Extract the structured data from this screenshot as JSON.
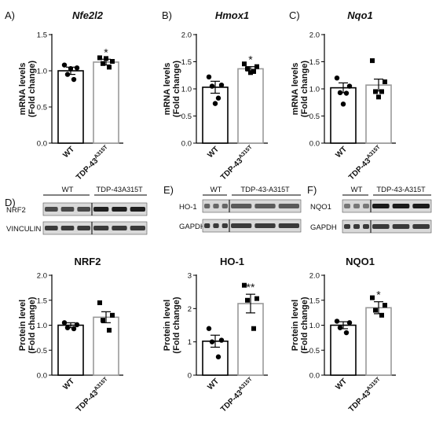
{
  "labels": {
    "A": "A)",
    "B": "B)",
    "C": "C)",
    "D": "D)",
    "E": "E)",
    "F": "F)"
  },
  "tick_labels_bar_axis": {
    "y_ticks_1_5": [
      "0.0",
      "0.5",
      "1.0",
      "1.5"
    ],
    "y_ticks_2_0": [
      "0.0",
      "0.5",
      "1.0",
      "1.5",
      "2.0"
    ],
    "y_ticks_int": [
      "0",
      "1",
      "2",
      "3"
    ]
  },
  "blot": {
    "D": {
      "groups": [
        "WT",
        "TDP-43"
      ],
      "group_sup": "A315T",
      "rows": [
        "NRF2",
        "VINCULIN"
      ]
    },
    "E": {
      "groups": [
        "WT",
        "TDP-43"
      ],
      "group_sup": "A315T",
      "rows": [
        "HO-1",
        "GAPDH"
      ]
    },
    "F": {
      "groups": [
        "WT",
        "TDP-43"
      ],
      "group_sup": "A315T",
      "rows": [
        "NQO1",
        "GAPDH"
      ]
    }
  },
  "chart_data": [
    {
      "panel": "A",
      "type": "bar",
      "title": "Nfe2l2",
      "ylabel": [
        "mRNA levels",
        "(Fold change)"
      ],
      "ylim": [
        0,
        1.5
      ],
      "categories": [
        "WT",
        "TDP-43"
      ],
      "category_sup": [
        "",
        "A315T"
      ],
      "values": [
        1.0,
        1.12
      ],
      "errors": [
        0.05,
        0.04
      ],
      "points": [
        [
          1.08,
          1.04,
          0.95,
          0.88,
          1.03
        ],
        [
          1.18,
          1.13,
          1.1,
          1.05,
          1.17
        ]
      ],
      "significance": [
        "",
        "*"
      ]
    },
    {
      "panel": "B",
      "type": "bar",
      "title": "Hmox1",
      "ylabel": [
        "mRNA levels",
        "(Fold change)"
      ],
      "ylim": [
        0,
        2.0
      ],
      "categories": [
        "WT",
        "TDP-43"
      ],
      "category_sup": [
        "",
        "A315T"
      ],
      "values": [
        1.03,
        1.37
      ],
      "errors": [
        0.11,
        0.04
      ],
      "points": [
        [
          1.22,
          1.07,
          1.05,
          0.83,
          0.73
        ],
        [
          1.46,
          1.41,
          1.37,
          1.32,
          1.3
        ]
      ],
      "significance": [
        "",
        "*"
      ]
    },
    {
      "panel": "C",
      "type": "bar",
      "title": "Nqo1",
      "ylabel": [
        "mRNA levels",
        "(Fold change)"
      ],
      "ylim": [
        0,
        2.0
      ],
      "categories": [
        "WT",
        "TDP-43"
      ],
      "category_sup": [
        "",
        "A315T"
      ],
      "values": [
        1.02,
        1.07
      ],
      "errors": [
        0.09,
        0.11
      ],
      "points": [
        [
          1.2,
          1.05,
          0.93,
          0.92,
          0.72
        ],
        [
          1.52,
          1.13,
          0.95,
          0.95,
          0.85
        ]
      ],
      "significance": [
        "",
        ""
      ]
    },
    {
      "panel": "D",
      "type": "bar",
      "title": "NRF2",
      "ylabel": [
        "Protein level",
        "(Fold change)"
      ],
      "ylim": [
        0,
        2.0
      ],
      "categories": [
        "WT",
        "TDP-43"
      ],
      "category_sup": [
        "",
        "A315T"
      ],
      "values": [
        1.0,
        1.16
      ],
      "errors": [
        0.05,
        0.11
      ],
      "points": [
        [
          1.05,
          1.01,
          0.95,
          0.93
        ],
        [
          1.45,
          1.2,
          1.1,
          0.9
        ]
      ],
      "significance": [
        "",
        ""
      ]
    },
    {
      "panel": "E",
      "type": "bar",
      "title": "HO-1",
      "ylabel": [
        "Protein level",
        "(Fold change)"
      ],
      "ylim": [
        0,
        3
      ],
      "categories": [
        "WT",
        "TDP-43"
      ],
      "category_sup": [
        "",
        "A315T"
      ],
      "values": [
        1.02,
        2.15
      ],
      "errors": [
        0.18,
        0.28
      ],
      "points": [
        [
          1.4,
          1.05,
          1.0,
          0.55
        ],
        [
          2.7,
          2.3,
          2.25,
          1.4
        ]
      ],
      "significance": [
        "",
        "**"
      ]
    },
    {
      "panel": "F",
      "type": "bar",
      "title": "NQO1",
      "ylabel": [
        "Protein level",
        "(Fold change)"
      ],
      "ylim": [
        0,
        2.0
      ],
      "categories": [
        "WT",
        "TDP-43"
      ],
      "category_sup": [
        "",
        "A315T"
      ],
      "values": [
        1.0,
        1.35
      ],
      "errors": [
        0.07,
        0.12
      ],
      "points": [
        [
          1.08,
          1.05,
          0.95,
          0.85
        ],
        [
          1.55,
          1.4,
          1.3,
          1.2
        ]
      ],
      "significance": [
        "",
        "*"
      ]
    }
  ]
}
